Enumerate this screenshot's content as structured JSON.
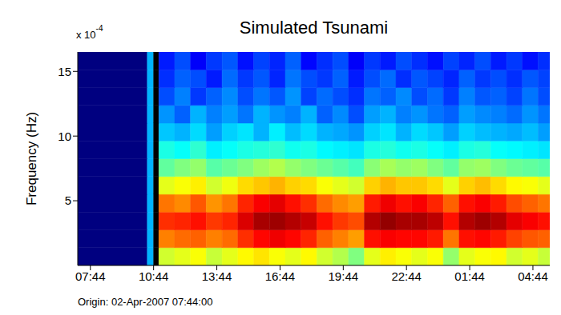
{
  "chart_data": {
    "type": "heatmap",
    "title": "Simulated Tsunami",
    "y_label": "Frequency (Hz)",
    "y_multiplier": {
      "base": "x 10",
      "exponent": "-4"
    },
    "annotations": [
      "Origin: 02-Apr-2007 07:44:00"
    ],
    "xlim": [
      -0.6,
      21.8
    ],
    "xticks": [
      {
        "value": 0,
        "label": "07:44"
      },
      {
        "value": 3,
        "label": "10:44"
      },
      {
        "value": 6,
        "label": "13:44"
      },
      {
        "value": 9,
        "label": "16:44"
      },
      {
        "value": 12,
        "label": "19:44"
      },
      {
        "value": 15,
        "label": "22:44"
      },
      {
        "value": 18,
        "label": "01:44"
      },
      {
        "value": 21,
        "label": "04:44"
      }
    ],
    "ylim": [
      0,
      16.5
    ],
    "yticks": [
      5,
      10,
      15
    ],
    "color_range": [
      0,
      1
    ],
    "x_edges": [
      -0.6,
      2.7,
      3.0,
      3.25,
      4.0,
      4.75,
      5.5,
      6.25,
      7.0,
      7.75,
      8.5,
      9.25,
      10.0,
      10.75,
      11.5,
      12.25,
      13.0,
      13.75,
      14.5,
      15.25,
      16.0,
      16.75,
      17.5,
      18.25,
      19.0,
      19.75,
      20.5,
      21.25,
      21.8
    ],
    "y_edges": [
      0,
      1.375,
      2.75,
      4.125,
      5.5,
      6.875,
      8.25,
      9.625,
      11,
      12.375,
      13.75,
      15.125,
      16.5
    ],
    "z": [
      [
        0,
        0.3,
        null,
        0.58,
        0.6,
        0.62,
        0.57,
        0.6,
        0.63,
        0.65,
        0.62,
        0.6,
        0.63,
        0.58,
        0.55,
        0.5,
        0.6,
        0.64,
        0.62,
        0.6,
        0.62,
        0.52,
        0.6,
        0.62,
        0.63,
        0.58,
        0.6,
        0.57
      ],
      [
        0,
        0.3,
        null,
        0.75,
        0.77,
        0.78,
        0.75,
        0.77,
        0.83,
        0.87,
        0.89,
        0.87,
        0.84,
        0.78,
        0.75,
        0.72,
        0.86,
        0.88,
        0.87,
        0.87,
        0.85,
        0.76,
        0.86,
        0.87,
        0.85,
        0.81,
        0.79,
        0.78
      ],
      [
        0,
        0.3,
        null,
        0.83,
        0.84,
        0.86,
        0.82,
        0.84,
        0.91,
        0.96,
        0.97,
        0.95,
        0.93,
        0.86,
        0.82,
        0.8,
        0.95,
        0.98,
        0.96,
        0.96,
        0.94,
        0.86,
        0.95,
        0.97,
        0.95,
        0.9,
        0.88,
        0.86
      ],
      [
        0,
        0.3,
        null,
        0.76,
        0.74,
        0.79,
        0.73,
        0.76,
        0.84,
        0.88,
        0.9,
        0.86,
        0.83,
        0.77,
        0.74,
        0.72,
        0.85,
        0.89,
        0.86,
        0.88,
        0.84,
        0.78,
        0.86,
        0.88,
        0.85,
        0.8,
        0.78,
        0.76
      ],
      [
        0,
        0.3,
        null,
        0.6,
        0.62,
        0.64,
        0.58,
        0.61,
        0.66,
        0.68,
        0.7,
        0.67,
        0.66,
        0.62,
        0.6,
        0.58,
        0.67,
        0.7,
        0.68,
        0.68,
        0.66,
        0.6,
        0.67,
        0.69,
        0.66,
        0.63,
        0.62,
        0.6
      ],
      [
        0,
        0.3,
        null,
        0.47,
        0.5,
        0.52,
        0.46,
        0.48,
        0.5,
        0.53,
        0.55,
        0.52,
        0.5,
        0.48,
        0.46,
        0.44,
        0.51,
        0.54,
        0.52,
        0.53,
        0.5,
        0.47,
        0.52,
        0.53,
        0.5,
        0.48,
        0.47,
        0.46
      ],
      [
        0,
        0.3,
        null,
        0.4,
        0.38,
        0.42,
        0.36,
        0.38,
        0.4,
        0.41,
        0.42,
        0.39,
        0.4,
        0.37,
        0.36,
        0.35,
        0.4,
        0.41,
        0.39,
        0.4,
        0.38,
        0.36,
        0.4,
        0.41,
        0.38,
        0.37,
        0.36,
        0.35
      ],
      [
        0,
        0.3,
        null,
        0.32,
        0.3,
        0.34,
        0.28,
        0.33,
        0.35,
        0.3,
        0.36,
        0.31,
        0.34,
        0.3,
        0.29,
        0.27,
        0.33,
        0.35,
        0.3,
        0.34,
        0.32,
        0.28,
        0.33,
        0.31,
        0.3,
        0.29,
        0.31,
        0.28
      ],
      [
        0,
        0.3,
        null,
        0.27,
        0.22,
        0.3,
        0.25,
        0.28,
        0.24,
        0.3,
        0.27,
        0.25,
        0.3,
        0.22,
        0.26,
        0.2,
        0.28,
        0.3,
        0.25,
        0.27,
        0.24,
        0.22,
        0.28,
        0.26,
        0.25,
        0.23,
        0.27,
        0.24
      ],
      [
        0,
        0.3,
        null,
        0.2,
        0.25,
        0.18,
        0.22,
        0.26,
        0.2,
        0.24,
        0.21,
        0.27,
        0.19,
        0.23,
        0.2,
        0.17,
        0.24,
        0.22,
        0.26,
        0.2,
        0.23,
        0.18,
        0.25,
        0.21,
        0.22,
        0.19,
        0.24,
        0.2
      ],
      [
        0,
        0.3,
        null,
        0.17,
        0.22,
        0.2,
        0.15,
        0.23,
        0.18,
        0.21,
        0.16,
        0.24,
        0.2,
        0.18,
        0.22,
        0.15,
        0.2,
        0.23,
        0.17,
        0.21,
        0.19,
        0.16,
        0.22,
        0.18,
        0.2,
        0.17,
        0.21,
        0.19
      ],
      [
        0,
        0.3,
        null,
        0.15,
        0.2,
        0.12,
        0.18,
        0.21,
        0.14,
        0.19,
        0.16,
        0.22,
        0.13,
        0.17,
        0.2,
        0.12,
        0.18,
        0.15,
        0.2,
        0.17,
        0.14,
        0.19,
        0.16,
        0.2,
        0.15,
        0.18,
        0.14,
        0.17
      ]
    ]
  }
}
